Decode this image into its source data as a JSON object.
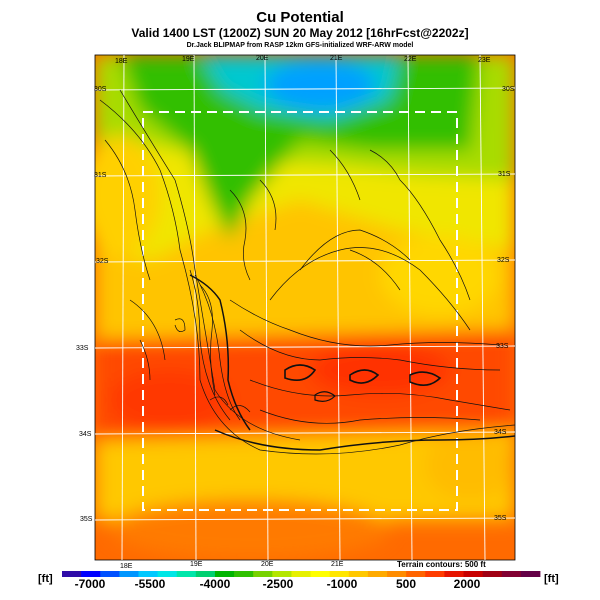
{
  "title": "Cu Potential",
  "subtitle": "Valid 1400 LST (1200Z) SUN 20 May 2012 [16hrFcst@2202z]",
  "credit": "Dr.Jack BLIPMAP from RASP 12km GFS-initialized WRF-ARW model",
  "lon_labels_top": [
    "18E",
    "19E",
    "20E",
    "21E",
    "22E",
    "23E"
  ],
  "lon_labels_bottom": [
    "18E",
    "19E",
    "20E",
    "21E"
  ],
  "lat_labels_left": [
    "30S",
    "31S",
    "32S",
    "33S",
    "34S",
    "35S"
  ],
  "lat_labels_right": [
    "30S",
    "31S",
    "32S",
    "33S",
    "34S",
    "35S"
  ],
  "terrain_note": "Terrain contours: 500 ft",
  "colorbar": {
    "unit_left": "[ft]",
    "unit_right": "[ft]",
    "labels": [
      "-7000",
      "-5500",
      "-4000",
      "-2500",
      "-1000",
      "500",
      "2000"
    ],
    "colors": [
      "#2f0ca8",
      "#0000ff",
      "#0050ff",
      "#0096ff",
      "#00c8ff",
      "#00e6e6",
      "#00e6aa",
      "#00d070",
      "#00b400",
      "#30c000",
      "#78d200",
      "#b4e600",
      "#e6f000",
      "#ffff00",
      "#ffe600",
      "#ffc800",
      "#ffaa00",
      "#ff8c00",
      "#ff6400",
      "#ff3c00",
      "#e61400",
      "#c80000",
      "#a00014",
      "#820032",
      "#640046"
    ]
  }
}
